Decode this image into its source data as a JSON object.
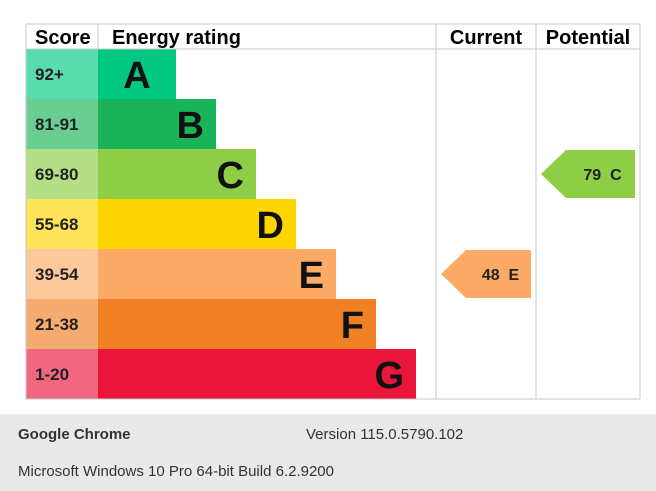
{
  "chart_data": {
    "type": "bar",
    "columns": {
      "score": "Score",
      "rating": "Energy rating",
      "current": "Current",
      "potential": "Potential"
    },
    "bands": [
      {
        "score": "92+",
        "letter": "A",
        "color": "#00c781"
      },
      {
        "score": "81-91",
        "letter": "B",
        "color": "#19b459"
      },
      {
        "score": "69-80",
        "letter": "C",
        "color": "#8dce46"
      },
      {
        "score": "55-68",
        "letter": "D",
        "color": "#ffd500"
      },
      {
        "score": "39-54",
        "letter": "E",
        "color": "#fcaa65"
      },
      {
        "score": "21-38",
        "letter": "F",
        "color": "#ef8023"
      },
      {
        "score": "1-20",
        "letter": "G",
        "color": "#e9153b"
      }
    ],
    "current": {
      "value": 48,
      "letter": "E",
      "label": "48 E",
      "color": "#fcaa65"
    },
    "potential": {
      "value": 79,
      "letter": "C",
      "label": "79 C",
      "color": "#8dce46"
    }
  },
  "footer": {
    "app_name": "Google Chrome",
    "version": "Version 115.0.5790.102",
    "os": "Microsoft Windows 10 Pro 64-bit Build 6.2.9200"
  }
}
